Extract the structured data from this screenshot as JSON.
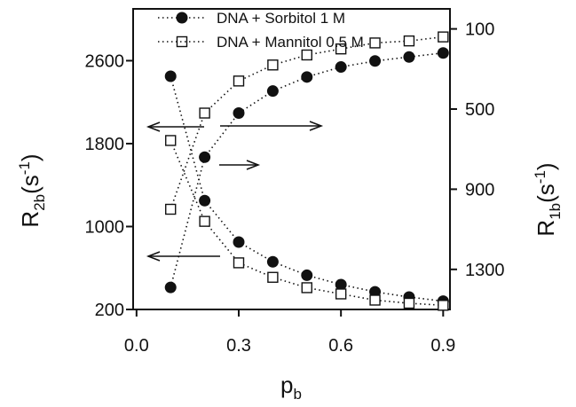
{
  "chart_data": {
    "type": "scatter",
    "title": "",
    "xlabel": "p",
    "xlabel_sub": "b",
    "ylabel_left": "R",
    "ylabel_left_sub": "2b",
    "ylabel_left_unit": "(s",
    "ylabel_left_unit_sup": "-1",
    "ylabel_left_unit_close": ")",
    "ylabel_right": "R",
    "ylabel_right_sub": "1b",
    "ylabel_right_unit": "(s",
    "ylabel_right_unit_sup": "-1",
    "ylabel_right_unit_close": ")",
    "x_ticks": [
      "0.0",
      "0.3",
      "0.6",
      "0.9"
    ],
    "x_tick_values": [
      0.0,
      0.3,
      0.6,
      0.9
    ],
    "y_left_ticks": [
      "200",
      "1000",
      "1800",
      "2600"
    ],
    "y_left_tick_values": [
      200,
      1000,
      1800,
      2600
    ],
    "y_right_ticks": [
      "100",
      "500",
      "900",
      "1300"
    ],
    "y_right_tick_values": [
      100,
      500,
      900,
      1300
    ],
    "xlim": [
      -0.01,
      0.92
    ],
    "ylim_left": [
      200,
      3100
    ],
    "ylim_right": [
      1500,
      0
    ],
    "grid": false,
    "legend_position": "top",
    "series": [
      {
        "name": "DNA + Sorbitol 1 M",
        "marker": "filled-circle",
        "axis": "left",
        "x": [
          0.1,
          0.2,
          0.3,
          0.4,
          0.5,
          0.6,
          0.7,
          0.8,
          0.9
        ],
        "y": [
          2450,
          1250,
          850,
          660,
          530,
          440,
          370,
          320,
          280
        ]
      },
      {
        "name": "DNA + Mannitol 0.5 M",
        "marker": "open-square",
        "axis": "left",
        "x": [
          0.1,
          0.2,
          0.3,
          0.4,
          0.5,
          0.6,
          0.7,
          0.8,
          0.9
        ],
        "y": [
          1830,
          1050,
          650,
          510,
          410,
          350,
          290,
          260,
          240
        ]
      },
      {
        "name": "DNA + Sorbitol 1 M",
        "marker": "filled-circle",
        "axis": "right",
        "x": [
          0.1,
          0.2,
          0.3,
          0.4,
          0.5,
          0.6,
          0.7,
          0.8,
          0.9
        ],
        "y": [
          1390,
          740,
          520,
          410,
          340,
          290,
          260,
          240,
          220
        ]
      },
      {
        "name": "DNA + Mannitol 0.5 M",
        "marker": "open-square",
        "axis": "right",
        "x": [
          0.1,
          0.2,
          0.3,
          0.4,
          0.5,
          0.6,
          0.7,
          0.8,
          0.9
        ],
        "y": [
          1000,
          520,
          360,
          280,
          230,
          200,
          170,
          160,
          140
        ]
      }
    ],
    "annotations": [
      {
        "type": "arrow",
        "direction": "left",
        "points_to_axis": "left"
      },
      {
        "type": "arrow",
        "direction": "left",
        "points_to_axis": "left"
      },
      {
        "type": "arrow",
        "direction": "right",
        "points_to_axis": "right"
      },
      {
        "type": "arrow",
        "direction": "right",
        "points_to_axis": "right"
      }
    ]
  }
}
